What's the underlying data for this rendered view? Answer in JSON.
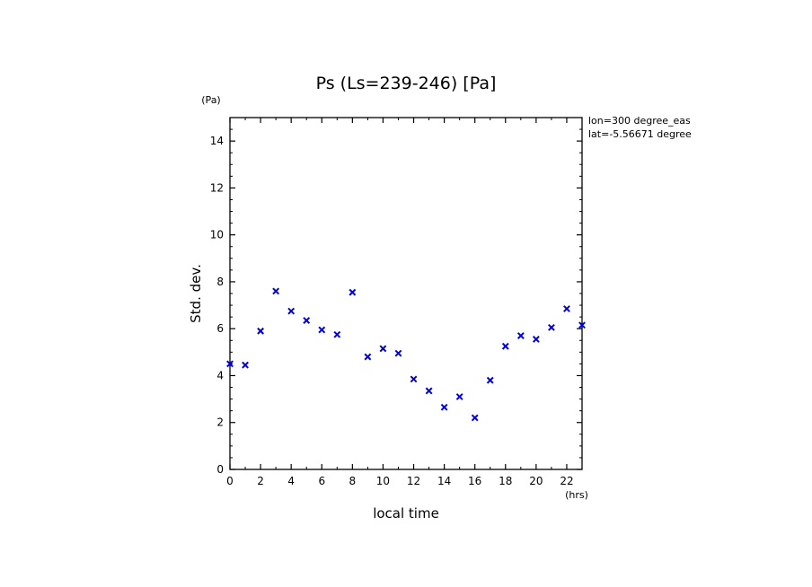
{
  "chart_data": {
    "type": "scatter",
    "title": "Ps (Ls=239-246) [Pa]",
    "xlabel": "local time",
    "ylabel": "Std. dev.",
    "x_unit": "(hrs)",
    "y_unit": "(Pa)",
    "xlim": [
      0,
      23
    ],
    "ylim": [
      0,
      15
    ],
    "x_ticks": [
      0,
      2,
      4,
      6,
      8,
      10,
      12,
      14,
      16,
      18,
      20,
      22
    ],
    "y_ticks": [
      0,
      2,
      4,
      6,
      8,
      10,
      12,
      14
    ],
    "annotations": [
      "lon=300 degree_eas",
      "lat=-5.56671 degree"
    ],
    "marker": "x",
    "marker_color": "#0000dd",
    "grid": false,
    "series": [
      {
        "x": [
          0,
          1,
          2,
          3,
          4,
          5,
          6,
          7,
          8,
          9,
          10,
          11,
          12,
          13,
          14,
          15,
          16,
          17,
          18,
          19,
          20,
          21,
          22,
          23
        ],
        "y": [
          4.5,
          4.45,
          5.9,
          7.6,
          6.75,
          6.35,
          5.95,
          5.75,
          7.55,
          4.8,
          5.15,
          4.95,
          3.85,
          3.35,
          2.65,
          3.1,
          2.2,
          3.8,
          5.25,
          5.7,
          5.55,
          6.05,
          6.85,
          6.15
        ]
      }
    ]
  }
}
